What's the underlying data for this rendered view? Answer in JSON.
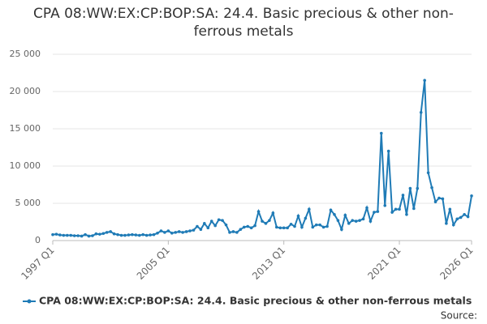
{
  "chart_data": {
    "type": "line",
    "title": "CPA 08:WW:EX:CP:BOP:SA: 24.4. Basic precious & other non-ferrous metals",
    "source": "Source:",
    "categories": [
      "1997 Q1",
      null,
      null,
      null,
      null,
      null,
      null,
      null,
      null,
      null,
      null,
      null,
      null,
      null,
      null,
      null,
      null,
      null,
      null,
      null,
      null,
      null,
      null,
      null,
      null,
      null,
      null,
      null,
      null,
      null,
      null,
      null,
      "2005 Q1",
      null,
      null,
      null,
      null,
      null,
      null,
      null,
      null,
      null,
      null,
      null,
      null,
      null,
      null,
      null,
      null,
      null,
      null,
      null,
      null,
      null,
      null,
      null,
      null,
      null,
      null,
      null,
      null,
      null,
      null,
      null,
      "2013 Q1",
      null,
      null,
      null,
      null,
      null,
      null,
      null,
      null,
      null,
      null,
      null,
      null,
      null,
      null,
      null,
      null,
      null,
      null,
      null,
      null,
      null,
      null,
      null,
      null,
      null,
      null,
      null,
      null,
      null,
      null,
      null,
      "2021 Q1",
      null,
      null,
      null,
      null,
      null,
      null,
      null,
      null,
      null,
      null,
      null,
      null,
      null,
      null,
      null,
      null,
      null,
      null,
      null,
      "2026 Q1"
    ],
    "series": [
      {
        "name": "CPA 08:WW:EX:CP:BOP:SA: 24.4. Basic precious & other non-ferrous metals",
        "color": "#1f7bb6",
        "values": [
          800,
          850,
          750,
          700,
          700,
          700,
          650,
          650,
          600,
          800,
          600,
          650,
          900,
          850,
          950,
          1100,
          1200,
          900,
          800,
          700,
          700,
          750,
          800,
          750,
          700,
          800,
          700,
          750,
          800,
          1000,
          1300,
          1100,
          1300,
          1000,
          1100,
          1200,
          1100,
          1200,
          1300,
          1400,
          1900,
          1500,
          2300,
          1700,
          2600,
          2000,
          2800,
          2700,
          2100,
          1100,
          1200,
          1100,
          1500,
          1800,
          1900,
          1700,
          2000,
          3900,
          2600,
          2300,
          2700,
          3700,
          1800,
          1700,
          1700,
          1700,
          2200,
          1900,
          3300,
          1800,
          3000,
          4200,
          1800,
          2100,
          2100,
          1800,
          1900,
          4100,
          3500,
          2700,
          1500,
          3400,
          2300,
          2700,
          2600,
          2700,
          2900,
          4400,
          2600,
          3800,
          3900,
          14400,
          4700,
          12000,
          3800,
          4200,
          4200,
          6100,
          3500,
          7000,
          4300,
          7000,
          17200,
          21500,
          9100,
          7100,
          5200,
          5700,
          5600,
          2300,
          4200,
          2100,
          2900,
          3100,
          3500,
          3200,
          6000
        ]
      }
    ],
    "ylim": [
      0,
      25000
    ],
    "yticks": [
      0,
      {
        "value": 5000,
        "label": "5 000"
      },
      {
        "value": 10000,
        "label": "10 000"
      },
      {
        "value": 15000,
        "label": "15 000"
      },
      {
        "value": 20000,
        "label": "20 000"
      },
      {
        "value": 25000,
        "label": "25 000"
      }
    ],
    "grid": true
  }
}
